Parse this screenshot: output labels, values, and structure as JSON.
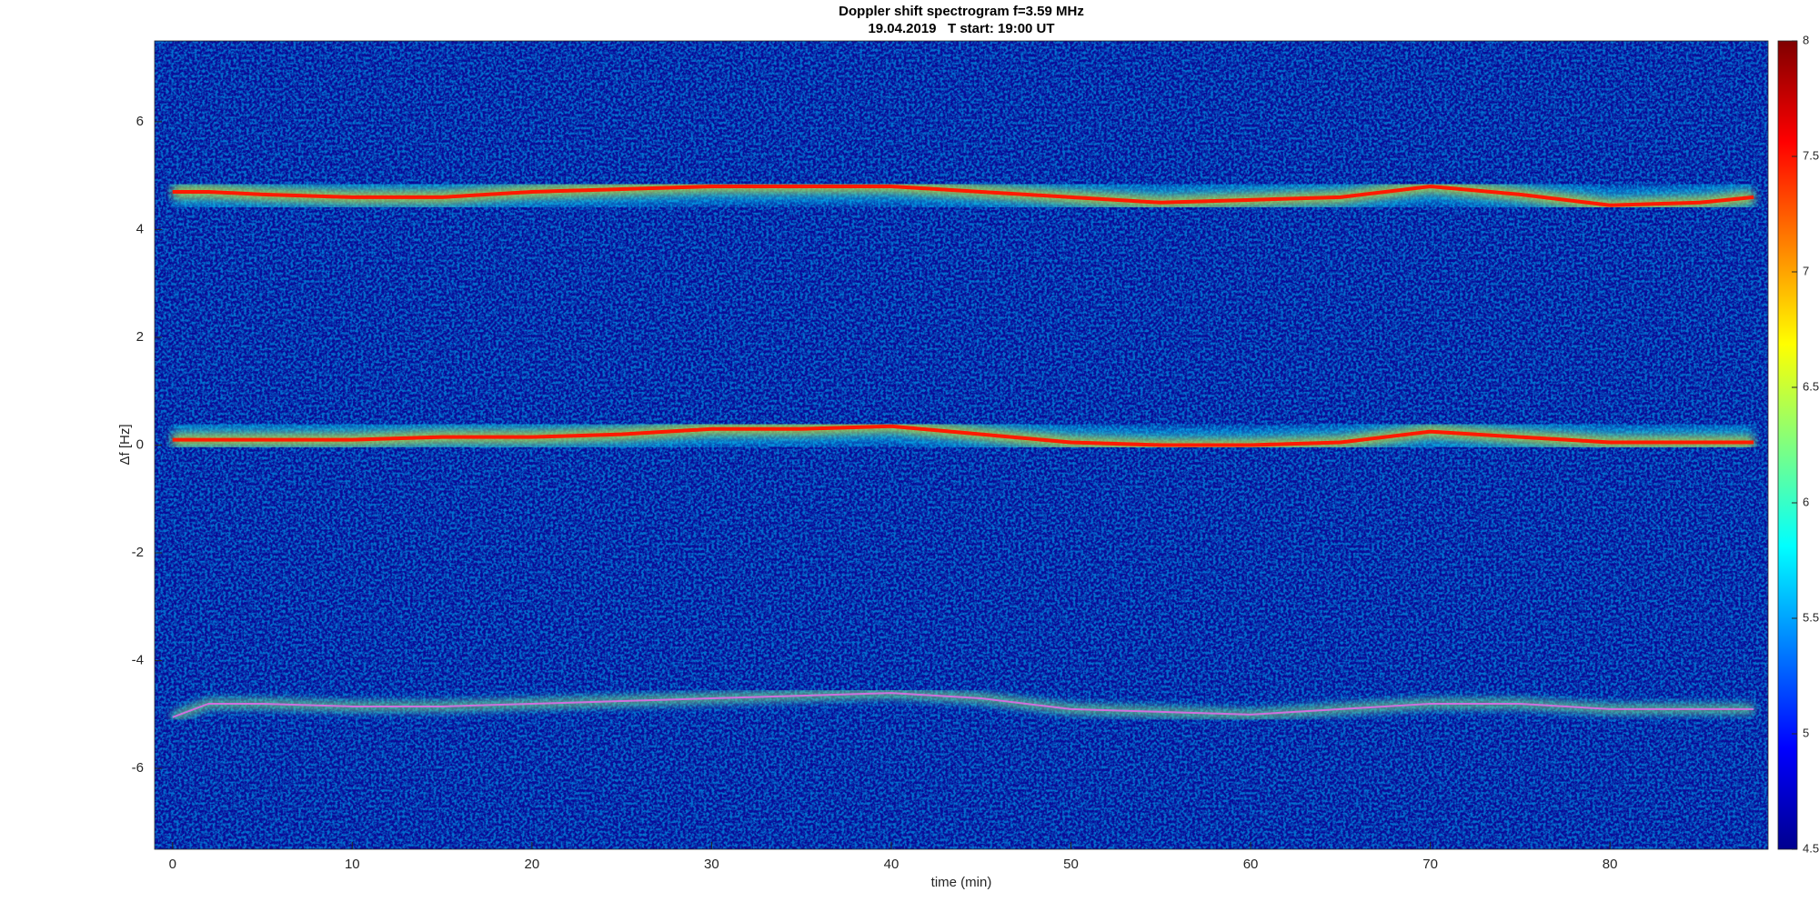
{
  "chart_data": {
    "type": "spectrogram",
    "title": "Doppler shift spectrogram f=3.59 MHz",
    "subtitle": "19.04.2019   T start: 19:00 UT",
    "xlabel": "time (min)",
    "ylabel": "Δf [Hz]",
    "x": [
      0,
      2,
      5,
      10,
      15,
      20,
      25,
      30,
      35,
      40,
      45,
      50,
      55,
      60,
      65,
      70,
      75,
      80,
      85,
      88
    ],
    "series": [
      {
        "color": "#ff1a00",
        "values": [
          4.7,
          4.7,
          4.65,
          4.6,
          4.6,
          4.7,
          4.75,
          4.8,
          4.8,
          4.8,
          4.7,
          4.6,
          4.5,
          4.55,
          4.6,
          4.8,
          4.65,
          4.45,
          4.5,
          4.6
        ]
      },
      {
        "color": "#ff1a00",
        "values": [
          0.1,
          0.1,
          0.1,
          0.1,
          0.15,
          0.15,
          0.2,
          0.3,
          0.3,
          0.35,
          0.2,
          0.05,
          0,
          0,
          0.05,
          0.25,
          0.15,
          0.05,
          0.05,
          0.05
        ]
      },
      {
        "color": "#d070e0",
        "values": [
          -5.05,
          -4.8,
          -4.8,
          -4.85,
          -4.85,
          -4.8,
          -4.75,
          -4.7,
          -4.65,
          -4.6,
          -4.7,
          -4.9,
          -4.95,
          -5,
          -4.9,
          -4.8,
          -4.8,
          -4.9,
          -4.9,
          -4.9
        ]
      }
    ],
    "xlim": [
      -1,
      88.8
    ],
    "ylim": [
      -7.5,
      7.5
    ],
    "xticks": [
      0,
      10,
      20,
      30,
      40,
      50,
      60,
      70,
      80
    ],
    "yticks": [
      -6,
      -4,
      -2,
      0,
      2,
      4,
      6
    ],
    "clim": [
      4.5,
      8
    ],
    "cticks": [
      4.5,
      5,
      5.5,
      6,
      6.5,
      7,
      7.5,
      8
    ],
    "colormap": "jet"
  }
}
